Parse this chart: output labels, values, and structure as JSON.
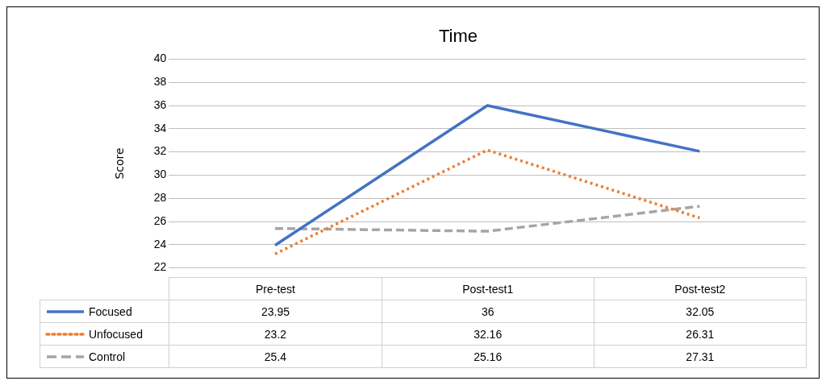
{
  "chart_data": {
    "type": "line",
    "title": "Time",
    "ylabel": "Score",
    "categories": [
      "Pre-test",
      "Post-test1",
      "Post-test2"
    ],
    "series": [
      {
        "name": "Focused",
        "color": "#4472c4",
        "values": [
          23.95,
          36,
          32.05
        ],
        "line_style": "solid"
      },
      {
        "name": "Unfocused",
        "color": "#ed7d31",
        "values": [
          23.2,
          32.16,
          26.31
        ],
        "line_style": "dotted"
      },
      {
        "name": "Control",
        "color": "#a5a5a5",
        "values": [
          25.4,
          25.16,
          27.31
        ],
        "line_style": "dashed"
      }
    ],
    "ylim": [
      22,
      40
    ],
    "yticks": [
      22,
      24,
      26,
      28,
      30,
      32,
      34,
      36,
      38,
      40
    ],
    "grid": "y",
    "marker": "none",
    "data_labels": true,
    "legend": "bottom"
  }
}
